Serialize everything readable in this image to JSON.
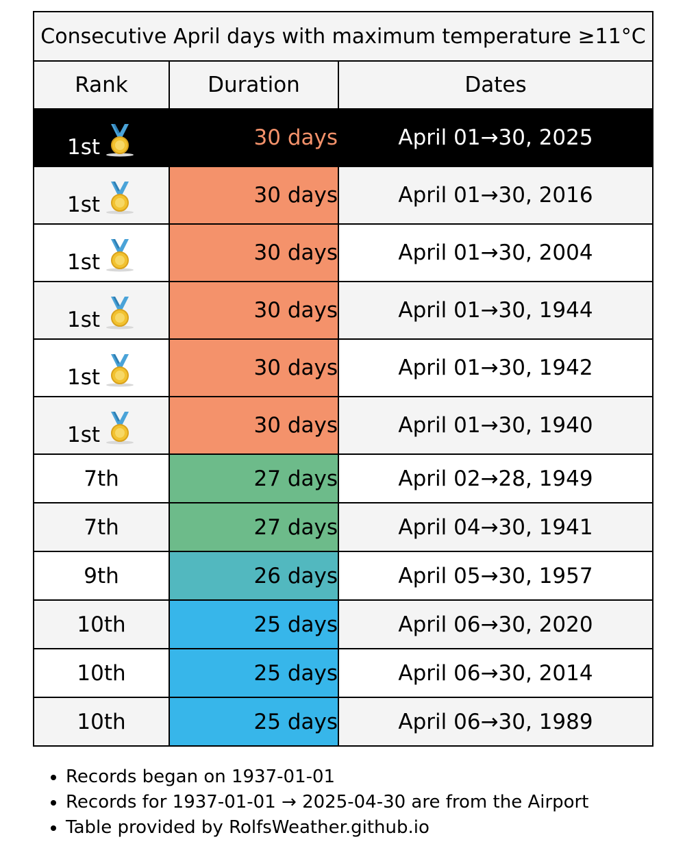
{
  "title": "Consecutive April days with maximum temperature ≥11°C",
  "columns": [
    "Rank",
    "Duration",
    "Dates"
  ],
  "rows": [
    {
      "rank": "1st",
      "medal": "gold-medal-icon",
      "duration": "30 days",
      "dates": "April 01→30, 2025",
      "color": "#f4926b",
      "highlight": true
    },
    {
      "rank": "1st",
      "medal": "gold-medal-icon",
      "duration": "30 days",
      "dates": "April 01→30, 2016",
      "color": "#f4926b",
      "highlight": false
    },
    {
      "rank": "1st",
      "medal": "gold-medal-icon",
      "duration": "30 days",
      "dates": "April 01→30, 2004",
      "color": "#f4926b",
      "highlight": false
    },
    {
      "rank": "1st",
      "medal": "gold-medal-icon",
      "duration": "30 days",
      "dates": "April 01→30, 1944",
      "color": "#f4926b",
      "highlight": false
    },
    {
      "rank": "1st",
      "medal": "gold-medal-icon",
      "duration": "30 days",
      "dates": "April 01→30, 1942",
      "color": "#f4926b",
      "highlight": false
    },
    {
      "rank": "1st",
      "medal": "gold-medal-icon",
      "duration": "30 days",
      "dates": "April 01→30, 1940",
      "color": "#f4926b",
      "highlight": false
    },
    {
      "rank": "7th",
      "medal": null,
      "duration": "27 days",
      "dates": "April 02→28, 1949",
      "color": "#6dbb8a",
      "highlight": false
    },
    {
      "rank": "7th",
      "medal": null,
      "duration": "27 days",
      "dates": "April 04→30, 1941",
      "color": "#6dbb8a",
      "highlight": false
    },
    {
      "rank": "9th",
      "medal": null,
      "duration": "26 days",
      "dates": "April 05→30, 1957",
      "color": "#52b8bf",
      "highlight": false
    },
    {
      "rank": "10th",
      "medal": null,
      "duration": "25 days",
      "dates": "April 06→30, 2020",
      "color": "#37b6ea",
      "highlight": false
    },
    {
      "rank": "10th",
      "medal": null,
      "duration": "25 days",
      "dates": "April 06→30, 2014",
      "color": "#37b6ea",
      "highlight": false
    },
    {
      "rank": "10th",
      "medal": null,
      "duration": "25 days",
      "dates": "April 06→30, 1989",
      "color": "#37b6ea",
      "highlight": false
    }
  ],
  "notes": [
    "Records began on 1937-01-01",
    "Records for 1937-01-01 → 2025-04-30 are from the Airport",
    "Table provided by RolfsWeather.github.io"
  ],
  "colors": {
    "header_bg": "#f4f4f4",
    "alt_row_bg": "#f4f4f4",
    "highlight_bg": "#000000"
  }
}
